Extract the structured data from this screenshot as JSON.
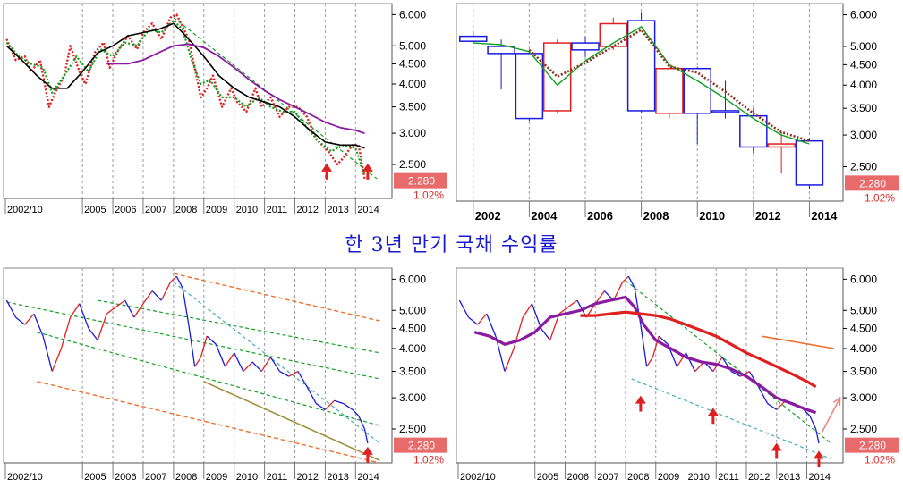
{
  "title": "한 3년 만기 국채 수익률",
  "price_label": "2.280",
  "pct_label": "1.02%",
  "colors": {
    "red": "#e02020",
    "green": "#10a020",
    "black": "#000000",
    "purple": "#8a1aa0",
    "blue": "#1a1ae0",
    "orange": "#f07030",
    "olive": "#a09040",
    "teal": "#40b0b0",
    "brown": "#8a3020"
  },
  "chart_data": [
    {
      "type": "line",
      "panel": "top-left",
      "y_ticks": [
        "6.000",
        "5.000",
        "4.500",
        "4.000",
        "3.500",
        "3.000",
        "2.500"
      ],
      "y_tick_values": [
        6.0,
        5.0,
        4.5,
        4.0,
        3.5,
        3.0,
        2.5
      ],
      "x_ticks": [
        "2002/10",
        "2005",
        "2006",
        "2007",
        "2008",
        "2009",
        "2010",
        "2011",
        "2012",
        "2013",
        "2014"
      ],
      "x_tick_values": [
        2002.75,
        2005,
        2006,
        2007,
        2008,
        2009,
        2010,
        2011,
        2012,
        2013,
        2014
      ],
      "x_range": [
        2002.4,
        2015.2
      ],
      "y_range": [
        2.05,
        6.4
      ],
      "series": [
        {
          "style": "red-dotted",
          "x": [
            2002.5,
            2002.8,
            2003.1,
            2003.3,
            2003.6,
            2003.9,
            2004.1,
            2004.4,
            2004.6,
            2004.9,
            2005.1,
            2005.4,
            2005.7,
            2005.9,
            2006.2,
            2006.5,
            2006.8,
            2007.0,
            2007.3,
            2007.6,
            2007.9,
            2008.1,
            2008.3,
            2008.5,
            2008.7,
            2008.9,
            2009.1,
            2009.3,
            2009.6,
            2009.9,
            2010.1,
            2010.4,
            2010.7,
            2010.9,
            2011.2,
            2011.5,
            2011.8,
            2012.1,
            2012.4,
            2012.7,
            2012.9,
            2013.1,
            2013.4,
            2013.6,
            2013.9,
            2014.1,
            2014.3
          ],
          "y": [
            5.2,
            4.6,
            4.7,
            4.3,
            4.6,
            3.5,
            3.8,
            4.2,
            5.0,
            4.3,
            4.0,
            4.8,
            5.1,
            4.4,
            4.9,
            5.3,
            4.9,
            5.4,
            5.7,
            5.2,
            5.9,
            6.0,
            5.6,
            5.2,
            4.4,
            3.7,
            3.9,
            4.2,
            3.5,
            3.9,
            3.6,
            3.4,
            3.9,
            3.5,
            3.7,
            3.3,
            3.5,
            3.5,
            3.3,
            2.9,
            2.8,
            2.7,
            2.5,
            2.6,
            2.8,
            2.8,
            2.3
          ]
        },
        {
          "style": "green-dotted",
          "x": [
            2002.5,
            2002.9,
            2003.3,
            2003.7,
            2004.0,
            2004.4,
            2004.8,
            2005.2,
            2005.6,
            2006.0,
            2006.4,
            2006.8,
            2007.2,
            2007.6,
            2008.0,
            2008.3,
            2008.6,
            2008.9,
            2009.2,
            2009.6,
            2010.0,
            2010.4,
            2010.8,
            2011.2,
            2011.6,
            2012.0,
            2012.4,
            2012.8,
            2013.2,
            2013.6,
            2014.0,
            2014.3
          ],
          "y": [
            5.1,
            4.7,
            4.5,
            4.4,
            3.8,
            4.2,
            4.7,
            4.3,
            4.9,
            4.7,
            5.1,
            5.0,
            5.5,
            5.4,
            5.8,
            5.5,
            4.6,
            4.0,
            4.1,
            3.7,
            3.7,
            3.5,
            3.7,
            3.5,
            3.4,
            3.4,
            3.1,
            2.85,
            2.7,
            2.8,
            2.75,
            2.35
          ]
        },
        {
          "style": "black",
          "x": [
            2002.5,
            2003.0,
            2003.5,
            2004.0,
            2004.5,
            2005.0,
            2005.5,
            2006.0,
            2006.5,
            2007.0,
            2007.5,
            2008.0,
            2008.3,
            2008.6,
            2009.0,
            2009.5,
            2010.0,
            2010.5,
            2011.0,
            2011.5,
            2012.0,
            2012.5,
            2013.0,
            2013.5,
            2014.0,
            2014.3
          ],
          "y": [
            5.0,
            4.6,
            4.2,
            3.9,
            3.9,
            4.3,
            4.8,
            5.0,
            5.3,
            5.4,
            5.5,
            5.7,
            5.4,
            5.1,
            4.7,
            4.2,
            3.9,
            3.7,
            3.6,
            3.5,
            3.3,
            3.05,
            2.85,
            2.8,
            2.8,
            2.75
          ]
        },
        {
          "style": "purple",
          "x": [
            2005.8,
            2006.5,
            2007.0,
            2007.5,
            2008.0,
            2008.5,
            2009.0,
            2009.5,
            2010.0,
            2010.5,
            2011.0,
            2011.5,
            2012.0,
            2012.5,
            2013.0,
            2013.5,
            2014.0,
            2014.3
          ],
          "y": [
            4.5,
            4.5,
            4.6,
            4.8,
            5.0,
            5.05,
            4.95,
            4.7,
            4.4,
            4.1,
            3.85,
            3.65,
            3.5,
            3.35,
            3.2,
            3.1,
            3.05,
            3.0
          ]
        }
      ],
      "trendlines": [
        {
          "style": "green-dashed",
          "x": [
            2008.0,
            2014.7
          ],
          "y": [
            5.9,
            2.3
          ]
        }
      ],
      "markers": [
        {
          "x": 2013.05,
          "y": 2.4
        },
        {
          "x": 2014.4,
          "y": 2.4
        }
      ]
    },
    {
      "type": "candlestick",
      "panel": "top-right",
      "y_ticks": [
        "6.000",
        "5.000",
        "4.500",
        "4.000",
        "3.500",
        "3.000",
        "2.500"
      ],
      "y_tick_values": [
        6.0,
        5.0,
        4.5,
        4.0,
        3.5,
        3.0,
        2.5
      ],
      "x_ticks": [
        "2002",
        "2004",
        "2006",
        "2008",
        "2010",
        "2012",
        "2014"
      ],
      "x_tick_values": [
        2002,
        2004,
        2006,
        2008,
        2010,
        2012,
        2014
      ],
      "x_range": [
        2001.4,
        2015.2
      ],
      "y_range": [
        2.05,
        6.4
      ],
      "candles": [
        {
          "year": 2002,
          "open": 5.3,
          "close": 5.15,
          "high": 5.45,
          "low": 5.1
        },
        {
          "year": 2003,
          "open": 5.0,
          "close": 4.8,
          "high": 5.2,
          "low": 3.9
        },
        {
          "year": 2004,
          "open": 4.8,
          "close": 3.3,
          "high": 4.9,
          "low": 3.25
        },
        {
          "year": 2005,
          "open": 3.45,
          "close": 5.1,
          "high": 5.2,
          "low": 3.4
        },
        {
          "year": 2006,
          "open": 5.1,
          "close": 4.9,
          "high": 5.3,
          "low": 4.7
        },
        {
          "year": 2007,
          "open": 5.0,
          "close": 5.7,
          "high": 5.9,
          "low": 4.9
        },
        {
          "year": 2008,
          "open": 5.8,
          "close": 3.45,
          "high": 6.1,
          "low": 3.4
        },
        {
          "year": 2009,
          "open": 3.4,
          "close": 4.4,
          "high": 4.5,
          "low": 3.3
        },
        {
          "year": 2010,
          "open": 4.4,
          "close": 3.4,
          "high": 4.45,
          "low": 2.85
        },
        {
          "year": 2011,
          "open": 3.45,
          "close": 3.45,
          "high": 4.1,
          "low": 3.3
        },
        {
          "year": 2012,
          "open": 3.35,
          "close": 2.8,
          "high": 3.5,
          "low": 2.7
        },
        {
          "year": 2013,
          "open": 2.8,
          "close": 2.85,
          "high": 3.05,
          "low": 2.4
        },
        {
          "year": 2014,
          "open": 2.9,
          "close": 2.25,
          "high": 2.95,
          "low": 2.2
        }
      ],
      "series": [
        {
          "style": "green",
          "x": [
            2002,
            2003,
            2004,
            2005,
            2006,
            2007,
            2008,
            2009,
            2010,
            2011,
            2012,
            2013,
            2014
          ],
          "y": [
            5.1,
            5.05,
            4.85,
            4.0,
            4.6,
            5.1,
            5.6,
            4.5,
            4.1,
            3.7,
            3.3,
            3.0,
            2.85
          ]
        },
        {
          "style": "brown-dotted",
          "x": [
            2004,
            2005,
            2006,
            2007,
            2008,
            2009,
            2010,
            2011,
            2012,
            2013,
            2014
          ],
          "y": [
            4.9,
            4.2,
            4.55,
            5.0,
            5.5,
            4.45,
            4.3,
            3.85,
            3.4,
            3.05,
            2.9
          ]
        }
      ]
    },
    {
      "type": "line",
      "panel": "bottom-left",
      "y_ticks": [
        "6.000",
        "5.000",
        "4.500",
        "4.000",
        "3.500",
        "3.000",
        "2.500"
      ],
      "y_tick_values": [
        6.0,
        5.0,
        4.5,
        4.0,
        3.5,
        3.0,
        2.5
      ],
      "x_ticks": [
        "2002/10",
        "2005",
        "2006",
        "2007",
        "2008",
        "2009",
        "2010",
        "2011",
        "2012",
        "2013",
        "2014"
      ],
      "x_tick_values": [
        2002.75,
        2005,
        2006,
        2007,
        2008,
        2009,
        2010,
        2011,
        2012,
        2013,
        2014
      ],
      "x_range": [
        2002.4,
        2015.2
      ],
      "y_range": [
        2.05,
        6.4
      ],
      "series": [
        {
          "style": "blue-red",
          "x": [
            2002.5,
            2002.8,
            2003.1,
            2003.4,
            2003.7,
            2004.0,
            2004.3,
            2004.6,
            2004.9,
            2005.2,
            2005.5,
            2005.8,
            2006.1,
            2006.4,
            2006.7,
            2007.0,
            2007.3,
            2007.6,
            2007.9,
            2008.1,
            2008.3,
            2008.5,
            2008.7,
            2008.9,
            2009.1,
            2009.4,
            2009.7,
            2010.0,
            2010.3,
            2010.6,
            2010.9,
            2011.2,
            2011.5,
            2011.8,
            2012.1,
            2012.4,
            2012.7,
            2013.0,
            2013.3,
            2013.6,
            2013.9,
            2014.1,
            2014.3,
            2014.4
          ],
          "y": [
            5.3,
            4.8,
            4.6,
            4.9,
            4.3,
            3.5,
            4.0,
            4.8,
            5.2,
            4.5,
            4.2,
            4.9,
            5.1,
            5.3,
            4.8,
            5.2,
            5.6,
            5.3,
            5.9,
            6.1,
            5.7,
            4.6,
            3.6,
            3.8,
            4.3,
            4.1,
            3.6,
            3.9,
            3.5,
            3.7,
            3.5,
            3.8,
            3.5,
            3.4,
            3.5,
            3.2,
            2.9,
            2.8,
            2.95,
            2.9,
            2.8,
            2.7,
            2.5,
            2.3
          ]
        }
      ],
      "trendlines": [
        {
          "style": "orange-dashed",
          "x": [
            2008.0,
            2014.8
          ],
          "y": [
            6.2,
            4.7
          ]
        },
        {
          "style": "orange-dashed",
          "x": [
            2003.5,
            2014.8
          ],
          "y": [
            3.3,
            2.05
          ]
        },
        {
          "style": "green-dashed",
          "x": [
            2002.5,
            2014.8
          ],
          "y": [
            5.25,
            3.35
          ]
        },
        {
          "style": "green-dashed",
          "x": [
            2005.5,
            2014.8
          ],
          "y": [
            5.3,
            3.9
          ]
        },
        {
          "style": "green-dashed",
          "x": [
            2003.5,
            2014.8
          ],
          "y": [
            4.4,
            2.55
          ]
        },
        {
          "style": "teal-dashed",
          "x": [
            2008.0,
            2014.8
          ],
          "y": [
            5.9,
            2.3
          ]
        },
        {
          "style": "olive",
          "x": [
            2009.0,
            2014.8
          ],
          "y": [
            3.3,
            2.08
          ]
        }
      ],
      "markers": [
        {
          "x": 2014.4,
          "y": 2.15
        }
      ]
    },
    {
      "type": "line",
      "panel": "bottom-right",
      "y_ticks": [
        "6.000",
        "5.000",
        "4.500",
        "4.000",
        "3.500",
        "3.000",
        "2.500"
      ],
      "y_tick_values": [
        6.0,
        5.0,
        4.5,
        4.0,
        3.5,
        3.0,
        2.5
      ],
      "x_ticks": [
        "2002/10",
        "2005",
        "2006",
        "2007",
        "2008",
        "2009",
        "2010",
        "2011",
        "2012",
        "2013",
        "2014"
      ],
      "x_tick_values": [
        2002.75,
        2005,
        2006,
        2007,
        2008,
        2009,
        2010,
        2011,
        2012,
        2013,
        2014
      ],
      "x_range": [
        2002.4,
        2015.2
      ],
      "y_range": [
        2.05,
        6.4
      ],
      "series": [
        {
          "style": "blue-red",
          "x": [
            2002.5,
            2002.8,
            2003.1,
            2003.4,
            2003.7,
            2004.0,
            2004.3,
            2004.6,
            2004.9,
            2005.2,
            2005.5,
            2005.8,
            2006.1,
            2006.4,
            2006.7,
            2007.0,
            2007.3,
            2007.6,
            2007.9,
            2008.1,
            2008.3,
            2008.5,
            2008.7,
            2008.9,
            2009.1,
            2009.4,
            2009.7,
            2010.0,
            2010.3,
            2010.6,
            2010.9,
            2011.2,
            2011.5,
            2011.8,
            2012.1,
            2012.4,
            2012.7,
            2013.0,
            2013.3,
            2013.6,
            2013.9,
            2014.1,
            2014.3,
            2014.4
          ],
          "y": [
            5.3,
            4.8,
            4.6,
            4.9,
            4.3,
            3.5,
            4.0,
            4.8,
            5.2,
            4.5,
            4.2,
            4.9,
            5.1,
            5.3,
            4.8,
            5.2,
            5.6,
            5.3,
            5.9,
            6.1,
            5.7,
            4.6,
            3.6,
            3.8,
            4.3,
            4.1,
            3.6,
            3.9,
            3.5,
            3.7,
            3.5,
            3.8,
            3.5,
            3.4,
            3.5,
            3.2,
            2.9,
            2.8,
            2.95,
            2.9,
            2.8,
            2.7,
            2.5,
            2.3
          ]
        },
        {
          "style": "purple-thick",
          "x": [
            2003.0,
            2003.5,
            2004.0,
            2004.5,
            2005.0,
            2005.5,
            2006.0,
            2006.5,
            2007.0,
            2007.5,
            2008.0,
            2008.3,
            2008.6,
            2009.0,
            2009.5,
            2010.0,
            2010.5,
            2011.0,
            2011.5,
            2012.0,
            2012.5,
            2013.0,
            2013.5,
            2014.0,
            2014.3
          ],
          "y": [
            4.4,
            4.3,
            4.1,
            4.2,
            4.4,
            4.8,
            4.9,
            5.0,
            5.2,
            5.3,
            5.4,
            5.1,
            4.6,
            4.2,
            4.0,
            3.8,
            3.7,
            3.65,
            3.55,
            3.4,
            3.2,
            3.0,
            2.9,
            2.8,
            2.75
          ]
        },
        {
          "style": "red-thick",
          "x": [
            2006.5,
            2007.0,
            2007.5,
            2008.0,
            2008.5,
            2009.0,
            2009.5,
            2010.0,
            2010.5,
            2011.0,
            2011.5,
            2012.0,
            2012.5,
            2013.0,
            2013.5,
            2014.0,
            2014.3
          ],
          "y": [
            4.85,
            4.85,
            4.9,
            4.95,
            4.9,
            4.85,
            4.75,
            4.6,
            4.45,
            4.3,
            4.1,
            3.9,
            3.75,
            3.6,
            3.45,
            3.3,
            3.2
          ]
        }
      ],
      "trendlines": [
        {
          "style": "orange",
          "x": [
            2012.5,
            2014.9
          ],
          "y": [
            4.3,
            4.0
          ]
        },
        {
          "style": "green-dashed",
          "x": [
            2008.0,
            2014.8
          ],
          "y": [
            5.95,
            2.3
          ]
        },
        {
          "style": "teal-dashed",
          "x": [
            2008.2,
            2014.8
          ],
          "y": [
            3.35,
            2.1
          ]
        }
      ],
      "markers": [
        {
          "x": 2008.5,
          "y": 2.9
        },
        {
          "x": 2010.9,
          "y": 2.7
        },
        {
          "x": 2013.0,
          "y": 2.2
        },
        {
          "x": 2014.4,
          "y": 2.1
        }
      ],
      "arrow": {
        "x": [
          2014.5,
          2015.1
        ],
        "y": [
          2.45,
          3.0
        ]
      }
    }
  ]
}
